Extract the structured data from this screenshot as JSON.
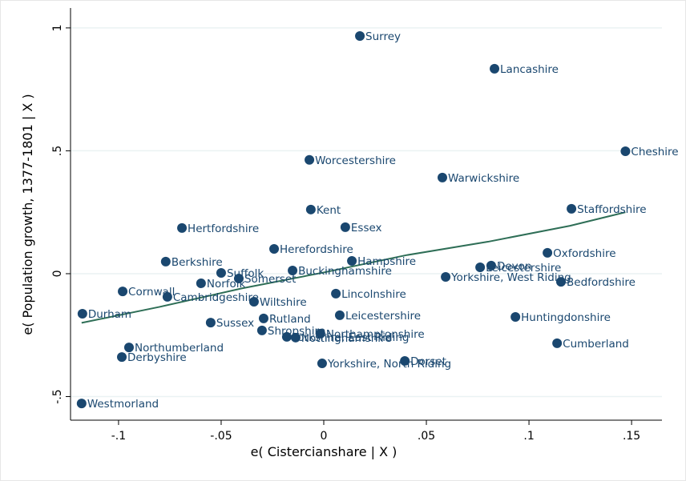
{
  "chart_data": {
    "type": "scatter",
    "xlabel": "e( Cistercianshare | X )",
    "ylabel": "e( Population growth, 1377-1801 | X )",
    "xlim": [
      -0.1234,
      0.1648
    ],
    "ylim": [
      -0.596,
      1.081
    ],
    "xticks": [
      {
        "value": -0.1,
        "label": "-.1"
      },
      {
        "value": -0.05,
        "label": "-.05"
      },
      0,
      {
        "value": 0.05,
        "label": ".05"
      },
      {
        "value": 0.1,
        "label": ".1"
      },
      {
        "value": 0.15,
        "label": ".15"
      }
    ],
    "yticks": [
      {
        "value": -0.5,
        "label": "-.5"
      },
      0,
      {
        "value": 0.5,
        "label": ".5"
      },
      1
    ],
    "grid": true,
    "points": {
      "color": "#1a476f",
      "labels": [
        "Surrey",
        "Lancashire",
        "Cheshire",
        "Worcestershire",
        "Warwickshire",
        "Kent",
        "Essex",
        "Staffordshire",
        "Hertfordshire",
        "Herefordshire",
        "Oxfordshire",
        "Hampshire",
        "Berkshire",
        "Devon",
        "Leicestershire",
        "Buckinghamshire",
        "Suffolk",
        "Somerset",
        "Norfolk",
        "Cornwall",
        "Cambridgeshire",
        "Wiltshire",
        "Yorkshire, West Riding",
        "Bedfordshire",
        "Lincolnshire",
        "Durham",
        "Leicestershire",
        "Huntingdonshire",
        "Rutland",
        "Sussex",
        "Shropshire",
        "Northamptonshire",
        "Yorkshire, East Riding",
        "Nottinghamshire",
        "Cumberland",
        "Northumberland",
        "Derbyshire",
        "Dorset",
        "Yorkshire, North Riding",
        "Westmorland"
      ],
      "x": [
        0.0176,
        0.0832,
        0.147,
        -0.007,
        0.0578,
        -0.0063,
        0.0105,
        0.1207,
        -0.0691,
        -0.0242,
        0.109,
        0.0137,
        -0.077,
        0.0816,
        0.0762,
        -0.0152,
        -0.05,
        -0.0414,
        -0.0598,
        -0.098,
        -0.0762,
        -0.034,
        0.0594,
        0.1156,
        0.0059,
        -0.1176,
        0.0078,
        0.0934,
        -0.0293,
        -0.0551,
        -0.0301,
        -0.0016,
        -0.018,
        -0.0137,
        0.1137,
        -0.0949,
        -0.0984,
        0.0395,
        -0.0008,
        -0.118
      ],
      "y": [
        0.967,
        0.834,
        0.498,
        0.463,
        0.391,
        0.261,
        0.189,
        0.264,
        0.186,
        0.101,
        0.085,
        0.052,
        0.049,
        0.033,
        0.026,
        0.013,
        0.003,
        -0.0195,
        -0.039,
        -0.072,
        -0.094,
        -0.114,
        -0.013,
        -0.033,
        -0.081,
        -0.163,
        -0.169,
        -0.176,
        -0.182,
        -0.199,
        -0.231,
        -0.244,
        -0.257,
        -0.26,
        -0.283,
        -0.3,
        -0.339,
        -0.355,
        -0.365,
        -0.528
      ]
    },
    "fit_line": {
      "color": "#2e6e56",
      "x": [
        -0.118,
        -0.08,
        -0.04,
        0,
        0.04,
        0.08,
        0.12,
        0.147
      ],
      "y": [
        -0.2,
        -0.135,
        -0.06,
        0.005,
        0.075,
        0.13,
        0.195,
        0.25
      ]
    }
  }
}
